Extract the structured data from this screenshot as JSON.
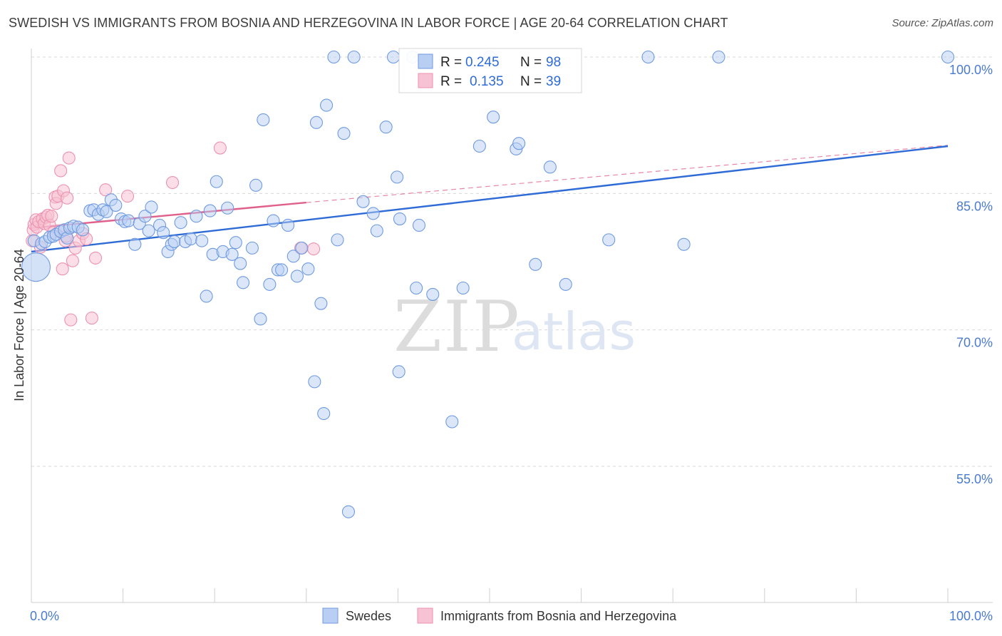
{
  "title": "SWEDISH VS IMMIGRANTS FROM BOSNIA AND HERZEGOVINA IN LABOR FORCE | AGE 20-64 CORRELATION CHART",
  "source": "Source: ZipAtlas.com",
  "watermark": {
    "zip": "ZIP",
    "atlas": "atlas"
  },
  "chart_data": {
    "type": "scatter",
    "ylabel": "In Labor Force | Age 20-64",
    "xlim": [
      0,
      100
    ],
    "ylim": [
      40,
      101.5
    ],
    "x_tick_labels": [
      {
        "value": 0,
        "label": "0.0%"
      },
      {
        "value": 100,
        "label": "100.0%"
      }
    ],
    "y_tick_labels": [
      {
        "value": 100,
        "label": "100.0%"
      },
      {
        "value": 85,
        "label": "85.0%"
      },
      {
        "value": 70,
        "label": "70.0%"
      },
      {
        "value": 55,
        "label": "55.0%"
      }
    ],
    "colors": {
      "swedes": "#5b8fe0",
      "bosnia": "#f08fb0",
      "swedes_line": "#2e6bd6",
      "bosnia_line": "#e0608c",
      "grid": "#d8d8d8",
      "axis_text": "#4a7bd0"
    },
    "stats": [
      {
        "r_label": "R =",
        "r": "0.245",
        "n_label": "N =",
        "n": "98"
      },
      {
        "r_label": "R =",
        "r": "0.135",
        "n_label": "N =",
        "n": "39"
      }
    ],
    "legend": [
      "Swedes",
      "Immigrants from Bosnia and Herzegovina"
    ],
    "trend_lines": {
      "swedes": {
        "x0": 0,
        "y0": 78.6,
        "x1": 100,
        "y1": 90.2
      },
      "bosnia_solid": {
        "x0": 0,
        "y0": 81.2,
        "x1": 30,
        "y1": 84.0
      },
      "bosnia_dashed": {
        "x0": 30,
        "y0": 84.0,
        "x1": 100,
        "y1": 90.3
      }
    },
    "series": [
      {
        "name": "Swedes",
        "points": [
          [
            0.3,
            79.8
          ],
          [
            1.1,
            79.5
          ],
          [
            1.5,
            79.7
          ],
          [
            2.0,
            80.2
          ],
          [
            2.4,
            80.3
          ],
          [
            2.7,
            80.5
          ],
          [
            3.2,
            80.8
          ],
          [
            3.6,
            81.0
          ],
          [
            3.9,
            80.1
          ],
          [
            4.2,
            81.2
          ],
          [
            4.6,
            81.4
          ],
          [
            5.1,
            81.3
          ],
          [
            5.6,
            81.0
          ],
          [
            6.4,
            83.1
          ],
          [
            6.8,
            83.2
          ],
          [
            7.3,
            82.7
          ],
          [
            7.8,
            83.2
          ],
          [
            8.2,
            83.0
          ],
          [
            8.7,
            84.3
          ],
          [
            9.2,
            83.7
          ],
          [
            9.8,
            82.2
          ],
          [
            10.2,
            81.9
          ],
          [
            10.6,
            82.0
          ],
          [
            11.3,
            79.4
          ],
          [
            11.8,
            81.7
          ],
          [
            12.4,
            82.5
          ],
          [
            12.8,
            80.9
          ],
          [
            13.1,
            83.5
          ],
          [
            14.0,
            81.5
          ],
          [
            14.4,
            80.7
          ],
          [
            14.9,
            78.6
          ],
          [
            15.3,
            79.4
          ],
          [
            15.6,
            79.7
          ],
          [
            16.3,
            81.8
          ],
          [
            16.8,
            79.7
          ],
          [
            17.4,
            80.0
          ],
          [
            18.0,
            82.5
          ],
          [
            18.6,
            79.8
          ],
          [
            19.1,
            73.7
          ],
          [
            19.5,
            83.1
          ],
          [
            19.8,
            78.3
          ],
          [
            20.2,
            86.3
          ],
          [
            20.9,
            78.6
          ],
          [
            21.4,
            83.4
          ],
          [
            21.9,
            78.3
          ],
          [
            22.3,
            79.6
          ],
          [
            22.8,
            77.3
          ],
          [
            23.1,
            75.2
          ],
          [
            24.1,
            79.0
          ],
          [
            24.5,
            85.9
          ],
          [
            25.0,
            71.2
          ],
          [
            25.3,
            93.1
          ],
          [
            26.0,
            75.0
          ],
          [
            26.4,
            82.0
          ],
          [
            26.9,
            76.6
          ],
          [
            27.3,
            76.6
          ],
          [
            28.0,
            81.5
          ],
          [
            28.6,
            78.1
          ],
          [
            29.0,
            75.9
          ],
          [
            29.5,
            79.0
          ],
          [
            30.2,
            76.7
          ],
          [
            30.9,
            64.3
          ],
          [
            31.1,
            92.8
          ],
          [
            31.6,
            72.9
          ],
          [
            31.9,
            60.8
          ],
          [
            32.2,
            94.7
          ],
          [
            33.0,
            100.0
          ],
          [
            33.4,
            79.9
          ],
          [
            34.1,
            91.6
          ],
          [
            34.6,
            50.0
          ],
          [
            35.2,
            100.0
          ],
          [
            36.2,
            84.1
          ],
          [
            37.3,
            82.8
          ],
          [
            37.7,
            80.9
          ],
          [
            38.7,
            92.3
          ],
          [
            39.5,
            100.0
          ],
          [
            39.9,
            86.8
          ],
          [
            40.1,
            65.4
          ],
          [
            40.2,
            82.2
          ],
          [
            41.6,
            100.0
          ],
          [
            42.0,
            74.6
          ],
          [
            42.3,
            81.5
          ],
          [
            43.8,
            73.9
          ],
          [
            45.9,
            59.9
          ],
          [
            47.1,
            74.6
          ],
          [
            48.9,
            90.2
          ],
          [
            50.0,
            100.0
          ],
          [
            50.4,
            93.4
          ],
          [
            52.9,
            89.9
          ],
          [
            53.2,
            90.5
          ],
          [
            55.0,
            77.2
          ],
          [
            56.6,
            87.9
          ],
          [
            58.3,
            75.0
          ],
          [
            63.0,
            79.9
          ],
          [
            67.3,
            100.0
          ],
          [
            71.2,
            79.4
          ],
          [
            75.0,
            100.0
          ],
          [
            100.0,
            100.0
          ]
        ],
        "large_point": [
          0.5,
          76.9
        ]
      },
      {
        "name": "Immigrants from Bosnia and Herzegovina",
        "points": [
          [
            0.1,
            79.8
          ],
          [
            0.2,
            81.0
          ],
          [
            0.3,
            81.6
          ],
          [
            0.5,
            82.1
          ],
          [
            0.6,
            81.3
          ],
          [
            0.8,
            81.9
          ],
          [
            1.0,
            79.1
          ],
          [
            1.2,
            82.2
          ],
          [
            1.4,
            81.7
          ],
          [
            1.6,
            82.4
          ],
          [
            1.8,
            82.6
          ],
          [
            2.0,
            81.5
          ],
          [
            2.2,
            82.5
          ],
          [
            2.4,
            80.7
          ],
          [
            2.6,
            84.6
          ],
          [
            2.7,
            83.9
          ],
          [
            2.9,
            84.7
          ],
          [
            3.1,
            80.9
          ],
          [
            3.2,
            87.5
          ],
          [
            3.4,
            76.7
          ],
          [
            3.5,
            85.3
          ],
          [
            3.7,
            79.8
          ],
          [
            3.8,
            80.3
          ],
          [
            3.9,
            84.5
          ],
          [
            4.1,
            88.9
          ],
          [
            4.3,
            71.1
          ],
          [
            4.5,
            77.6
          ],
          [
            4.8,
            79.0
          ],
          [
            5.2,
            79.8
          ],
          [
            5.6,
            80.6
          ],
          [
            6.0,
            80.0
          ],
          [
            6.6,
            71.3
          ],
          [
            7.0,
            77.9
          ],
          [
            8.1,
            85.4
          ],
          [
            10.5,
            84.7
          ],
          [
            15.4,
            86.2
          ],
          [
            20.6,
            90.0
          ],
          [
            29.4,
            79.0
          ],
          [
            30.8,
            78.9
          ]
        ]
      }
    ]
  }
}
